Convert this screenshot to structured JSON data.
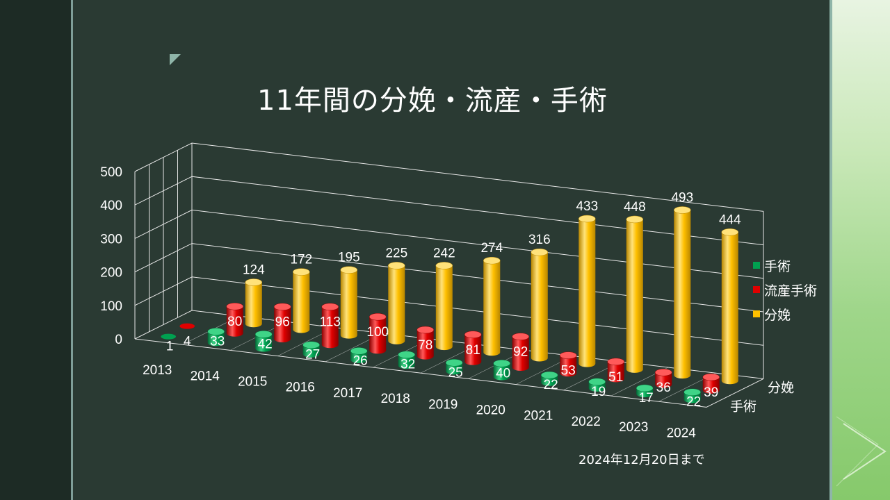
{
  "slide": {
    "title": "11年間の分娩・流産・手術",
    "note": "2024年12月20日まで"
  },
  "colors": {
    "background": "#2a3a33",
    "surgery": "#00a050",
    "miscarriage": "#e00000",
    "delivery": "#ffc000"
  },
  "chart_data": {
    "type": "bar",
    "style": "3d-cylinder",
    "title": "11年間の分娩・流産・手術",
    "categories": [
      "2013",
      "2014",
      "2015",
      "2016",
      "2017",
      "2018",
      "2019",
      "2020",
      "2021",
      "2022",
      "2023",
      "2024"
    ],
    "series": [
      {
        "name": "手術",
        "values": [
          1,
          33,
          42,
          27,
          26,
          32,
          25,
          40,
          22,
          19,
          17,
          22
        ]
      },
      {
        "name": "流産手術",
        "values": [
          4,
          80,
          96,
          113,
          100,
          78,
          81,
          92,
          53,
          51,
          36,
          39
        ]
      },
      {
        "name": "分娩",
        "values": [
          null,
          124,
          172,
          195,
          225,
          242,
          274,
          316,
          433,
          448,
          493,
          444
        ]
      }
    ],
    "depth_axis_labels": [
      "手術",
      "分娩"
    ],
    "y_ticks": [
      "0",
      "100",
      "200",
      "300",
      "400",
      "500"
    ],
    "ylim": [
      0,
      500
    ],
    "grid": true,
    "legend_position": "right"
  }
}
